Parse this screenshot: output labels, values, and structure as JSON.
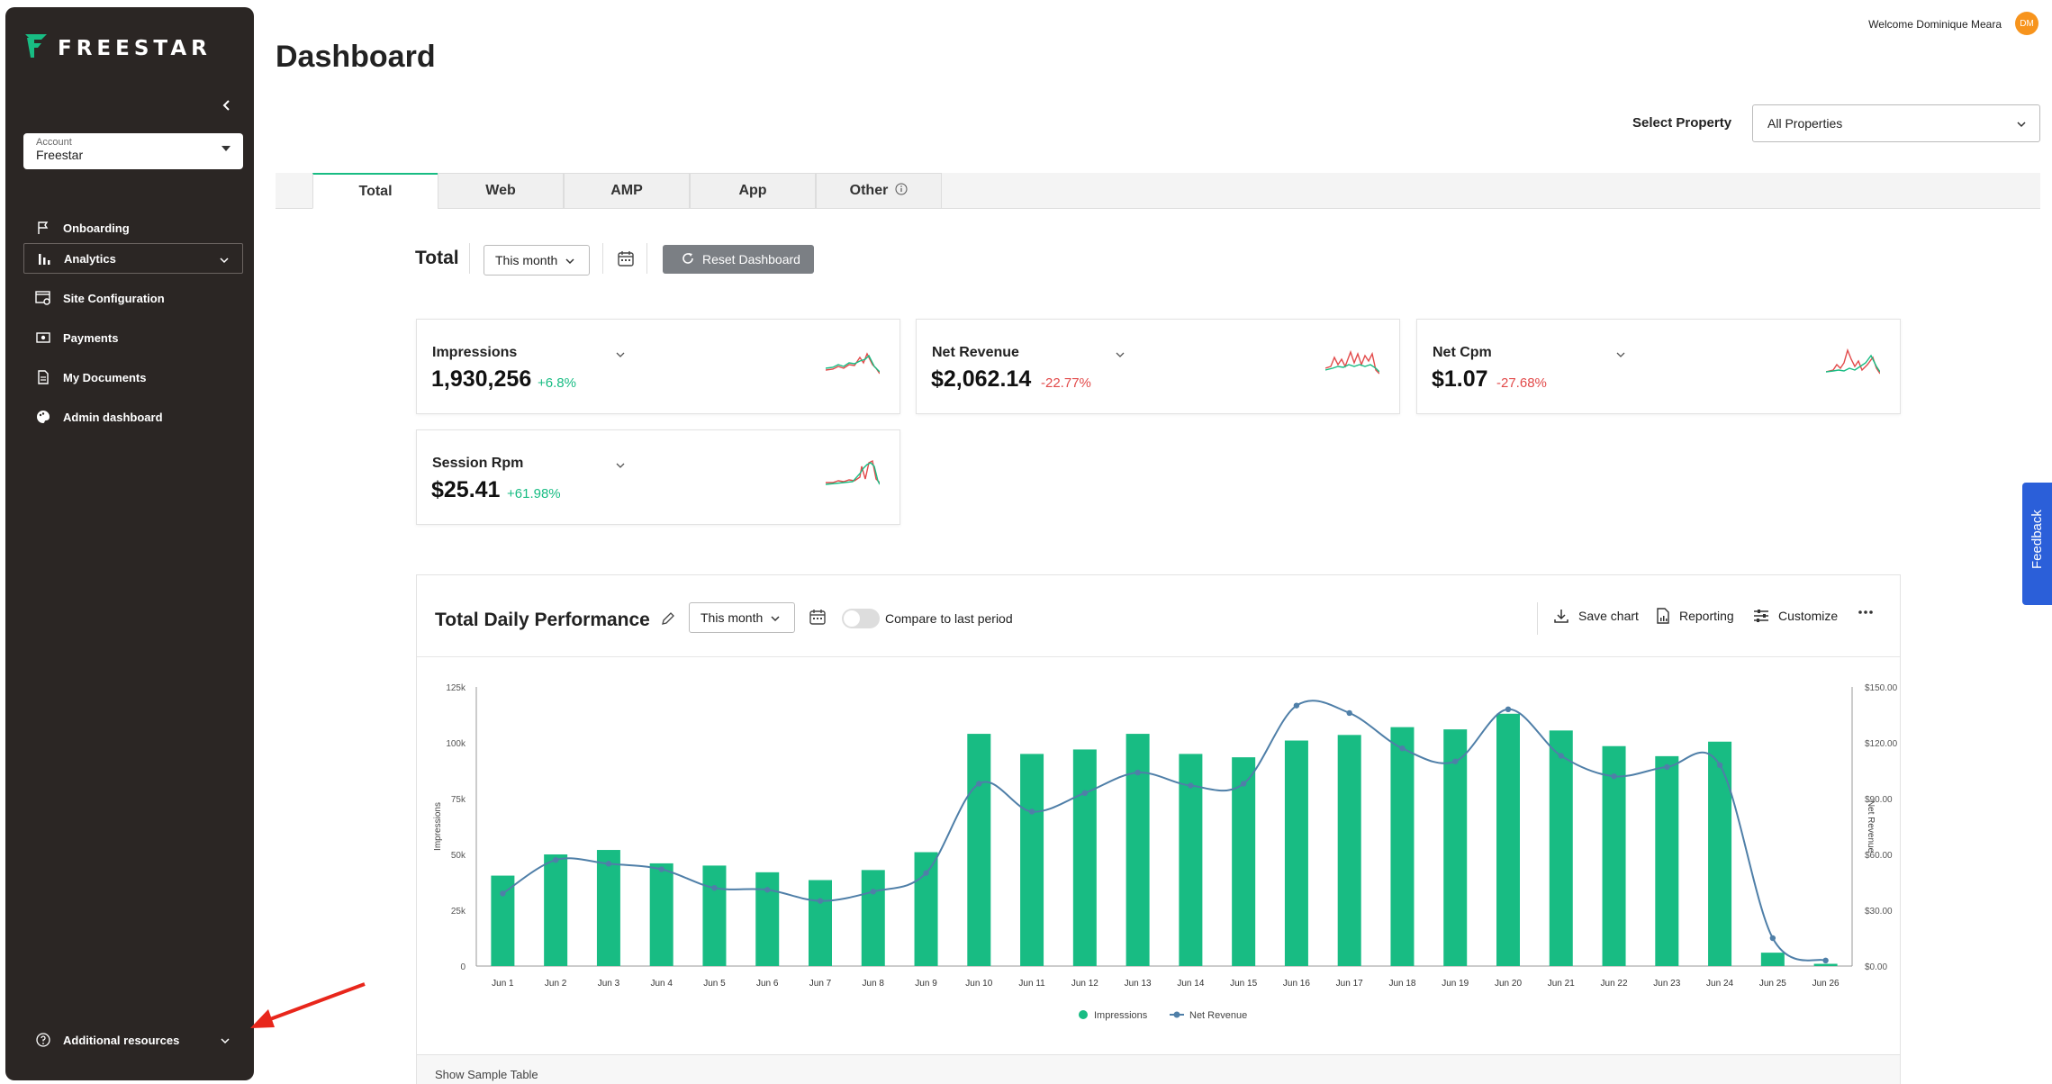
{
  "brand": {
    "name": "FREESTAR",
    "accent": "#18bc83"
  },
  "sidebar": {
    "account_label": "Account",
    "account_value": "Freestar",
    "items": [
      {
        "label": "Onboarding",
        "icon": "flag-icon"
      },
      {
        "label": "Analytics",
        "icon": "bar-chart-icon"
      },
      {
        "label": "Site Configuration",
        "icon": "window-gear-icon"
      },
      {
        "label": "Payments",
        "icon": "money-icon"
      },
      {
        "label": "My Documents",
        "icon": "document-icon"
      },
      {
        "label": "Admin dashboard",
        "icon": "palette-icon"
      }
    ],
    "additional_resources": "Additional resources"
  },
  "header": {
    "welcome": "Welcome Dominique Meara",
    "avatar_initials": "DM",
    "title": "Dashboard",
    "select_property_label": "Select Property",
    "select_property_value": "All Properties"
  },
  "tabs": [
    {
      "label": "Total"
    },
    {
      "label": "Web"
    },
    {
      "label": "AMP"
    },
    {
      "label": "App"
    },
    {
      "label": "Other"
    }
  ],
  "toolbar": {
    "total_label": "Total",
    "period": "This month",
    "reset_label": "Reset Dashboard"
  },
  "cards": [
    {
      "title": "Impressions",
      "value": "1,930,256",
      "change": "+6.8%",
      "trend": "positive"
    },
    {
      "title": "Net Revenue",
      "value": "$2,062.14",
      "change": "-22.77%",
      "trend": "negative"
    },
    {
      "title": "Net Cpm",
      "value": "$1.07",
      "change": "-27.68%",
      "trend": "negative"
    },
    {
      "title": "Session Rpm",
      "value": "$25.41",
      "change": "+61.98%",
      "trend": "positive"
    }
  ],
  "performance": {
    "title": "Total Daily Performance",
    "period": "This month",
    "compare_label": "Compare to last period",
    "save_chart": "Save chart",
    "reporting": "Reporting",
    "customize": "Customize",
    "show_sample_table": "Show Sample Table"
  },
  "chart_data": {
    "type": "bar",
    "categories": [
      "Jun 1",
      "Jun 2",
      "Jun 3",
      "Jun 4",
      "Jun 5",
      "Jun 6",
      "Jun 7",
      "Jun 8",
      "Jun 9",
      "Jun 10",
      "Jun 11",
      "Jun 12",
      "Jun 13",
      "Jun 14",
      "Jun 15",
      "Jun 16",
      "Jun 17",
      "Jun 18",
      "Jun 19",
      "Jun 20",
      "Jun 21",
      "Jun 22",
      "Jun 23",
      "Jun 24",
      "Jun 25",
      "Jun 26"
    ],
    "series": [
      {
        "name": "Impressions",
        "type": "bar",
        "axis": "left",
        "color": "#18bc83",
        "values": [
          40500,
          50000,
          52000,
          46000,
          45000,
          42000,
          38500,
          43000,
          51000,
          104000,
          95000,
          97000,
          104000,
          95000,
          93500,
          101000,
          103500,
          107000,
          106000,
          113000,
          105500,
          98500,
          94000,
          100500,
          6000,
          1000
        ]
      },
      {
        "name": "Net Revenue",
        "type": "line",
        "axis": "right",
        "color": "#4f7fa8",
        "values": [
          39,
          57,
          55,
          52,
          42,
          41,
          35,
          40,
          50,
          98,
          83,
          93,
          104,
          97,
          98,
          140,
          136,
          117,
          110,
          138,
          113,
          102,
          107,
          108,
          15,
          3
        ]
      }
    ],
    "ylabel_left": "Impressions",
    "ylabel_right": "Net Revenue",
    "ylim_left": [
      0,
      125000
    ],
    "ylim_right": [
      0,
      150
    ],
    "yticks_left": [
      "0",
      "25k",
      "50k",
      "75k",
      "100k",
      "125k"
    ],
    "yticks_right": [
      "$0.00",
      "$30.00",
      "$60.00",
      "$90.00",
      "$120.00",
      "$150.00"
    ],
    "legend_position": "bottom",
    "grid": false
  },
  "feedback_label": "Feedback"
}
